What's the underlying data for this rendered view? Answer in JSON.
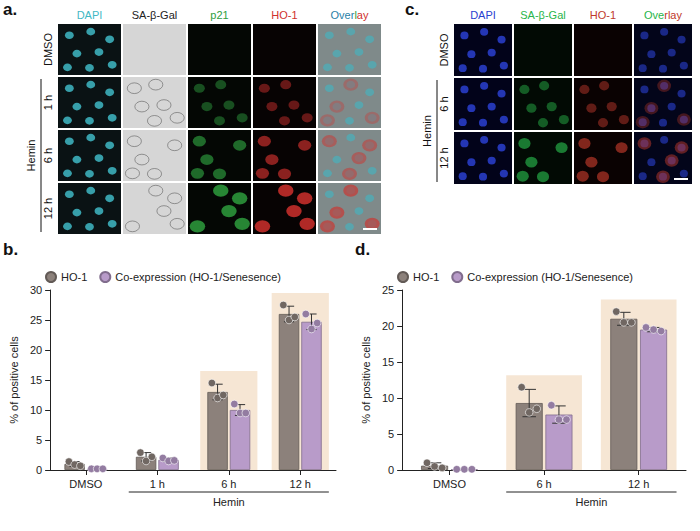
{
  "image_panels": [
    {
      "panel": "a.",
      "columns": [
        {
          "text": "DAPI",
          "color": "#3fb8c4",
          "ground": "#0a1214"
        },
        {
          "text": "SA-β-Gal",
          "color": "#222222",
          "ground": "#d6d6d6"
        },
        {
          "text": "p21",
          "color": "#2e9e3e",
          "ground": "#040704"
        },
        {
          "text": "HO-1",
          "color": "#d0312d",
          "ground": "#070303"
        },
        {
          "text": "Overlay",
          "colors": [
            "#2a7fa8",
            "#2a7fa8",
            "#2a7fa8",
            "#2a7fa8",
            "#2e9e3e",
            "#d0312d",
            "#d0312d"
          ],
          "ground": "#7f8a8a"
        }
      ],
      "rows": [
        "DMSO",
        "1 h",
        "6 h",
        "12 h"
      ],
      "row_group": {
        "text": "Hemin",
        "rows": [
          "1 h",
          "6 h",
          "12 h"
        ]
      }
    },
    {
      "panel": "c.",
      "columns": [
        {
          "text": "DAPI",
          "color": "#2a3fd0",
          "ground": "#02031a"
        },
        {
          "text": "SA-β-Gal",
          "color": "#27b54a",
          "ground": "#020a04"
        },
        {
          "text": "HO-1",
          "color": "#c0392b",
          "ground": "#0a0202"
        },
        {
          "text": "Overlay",
          "colors": [
            "#27b54a",
            "#27b54a",
            "#27b54a",
            "#c0392b",
            "#c0392b",
            "#c0392b",
            "#c0392b"
          ],
          "ground": "#03051a"
        }
      ],
      "rows": [
        "DMSO",
        "6 h",
        "12 h"
      ],
      "row_group": {
        "text": "Hemin",
        "rows": [
          "6 h",
          "12 h"
        ]
      }
    }
  ],
  "chart_data": [
    {
      "panel": "b.",
      "type": "bar",
      "categories": [
        "DMSO",
        "1 h",
        "6 h",
        "12 h"
      ],
      "annotations": [
        "Hemin"
      ],
      "y_label": "% of positive cells",
      "ylim": [
        0,
        30
      ],
      "yticks": [
        0,
        5,
        10,
        15,
        20,
        25,
        30
      ],
      "grid": false,
      "legend": "top",
      "series": [
        {
          "name": "HO-1",
          "color": "#8c817b",
          "values": [
            1.0,
            2.2,
            13.0,
            26.0
          ],
          "errors": [
            0.4,
            0.7,
            1.3,
            1.3
          ],
          "points": [
            [
              1.4,
              0.9,
              0.7
            ],
            [
              2.9,
              1.5,
              2.2
            ],
            [
              14.5,
              12.0,
              12.5
            ],
            [
              27.5,
              25.0,
              25.5
            ]
          ]
        },
        {
          "name": "Co-expression (HO-1/Senesence)",
          "color": "#b89bc9",
          "values": [
            0.2,
            1.7,
            10.0,
            24.7
          ],
          "errors": [
            0.05,
            0.3,
            0.9,
            1.3
          ],
          "points": [
            [
              0.2,
              0.2,
              0.2
            ],
            [
              2.0,
              1.5,
              1.6
            ],
            [
              11.0,
              9.5,
              9.5
            ],
            [
              26.0,
              23.5,
              24.5
            ]
          ]
        }
      ]
    },
    {
      "panel": "d.",
      "type": "bar",
      "categories": [
        "DMSO",
        "6 h",
        "12 h"
      ],
      "annotations": [
        "Hemin"
      ],
      "y_label": "% of positive cells",
      "ylim": [
        0,
        25
      ],
      "yticks": [
        0,
        5,
        10,
        15,
        20,
        25
      ],
      "grid": false,
      "legend": "top",
      "series": [
        {
          "name": "HO-1",
          "color": "#8c817b",
          "values": [
            0.6,
            9.3,
            21.0
          ],
          "errors": [
            0.4,
            1.9,
            0.9
          ],
          "points": [
            [
              1.0,
              0.5,
              0.3
            ],
            [
              11.5,
              8.0,
              8.5
            ],
            [
              22.0,
              20.5,
              20.5
            ]
          ]
        },
        {
          "name": "Co-expression (HO-1/Senesence)",
          "color": "#b89bc9",
          "values": [
            0.1,
            7.7,
            19.5
          ],
          "errors": [
            0.05,
            1.2,
            0.3
          ],
          "points": [
            [
              0.1,
              0.1,
              0.1
            ],
            [
              9.0,
              7.0,
              7.0
            ],
            [
              19.8,
              19.5,
              19.3
            ]
          ]
        }
      ]
    }
  ]
}
